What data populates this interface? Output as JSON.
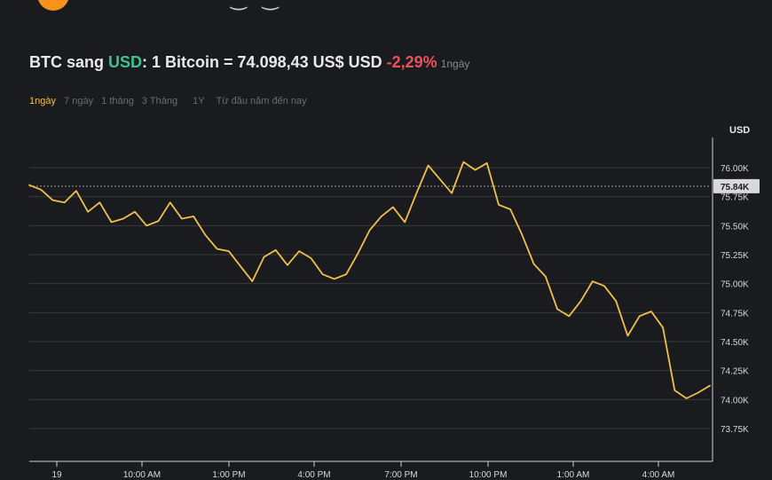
{
  "header": {
    "title_prefix": "BTC sang ",
    "title_currency": "USD",
    "title_rest": ": 1 Bitcoin = 74.098,43 US$ USD ",
    "change": "-2,29%",
    "period": "1ngày"
  },
  "tabs": [
    {
      "label": "1ngày",
      "active": true
    },
    {
      "label": "7 ngày",
      "active": false
    },
    {
      "label": "1 tháng",
      "active": false
    },
    {
      "label": "3 Tháng",
      "active": false
    },
    {
      "label": "1Y",
      "active": false
    },
    {
      "label": "Từ đầu năm đến nay",
      "active": false
    }
  ],
  "colors": {
    "line": "#f0c04a",
    "grid": "#3a3b3f",
    "background": "#1a1b1e",
    "positive": "#3ec28f",
    "negative": "#ef4f5a",
    "current_badge": "#d9d9d9"
  },
  "chart_data": {
    "type": "line",
    "ylabel": "USD",
    "current_value_label": "75.84K",
    "current_value": 75840,
    "ylim": [
      73600,
      76300
    ],
    "y_ticks": [
      {
        "value": 76000,
        "label": "76.00K"
      },
      {
        "value": 75750,
        "label": "75.75K"
      },
      {
        "value": 75500,
        "label": "75.50K"
      },
      {
        "value": 75250,
        "label": "75.25K"
      },
      {
        "value": 75000,
        "label": "75.00K"
      },
      {
        "value": 74750,
        "label": "74.75K"
      },
      {
        "value": 74500,
        "label": "74.50K"
      },
      {
        "value": 74250,
        "label": "74.25K"
      },
      {
        "value": 74000,
        "label": "74.00K"
      },
      {
        "value": 73750,
        "label": "73.75K"
      }
    ],
    "x_ticks": [
      "19",
      "10:00 AM",
      "1:00 PM",
      "4:00 PM",
      "7:00 PM",
      "10:00 PM",
      "1:00 AM",
      "4:00 AM"
    ],
    "series": [
      {
        "values": [
          75850,
          75810,
          75720,
          75700,
          75800,
          75620,
          75700,
          75530,
          75560,
          75620,
          75500,
          75540,
          75700,
          75560,
          75580,
          75420,
          75300,
          75280,
          75150,
          75020,
          75230,
          75290,
          75160,
          75280,
          75220,
          75080,
          75040,
          75080,
          75260,
          75460,
          75580,
          75660,
          75530,
          75780,
          76020,
          75900,
          75780,
          76050,
          75980,
          76040,
          75680,
          75640,
          75420,
          75170,
          75060,
          74780,
          74720,
          74850,
          75020,
          74980,
          74850,
          74550,
          74720,
          74760,
          74620,
          74080,
          74010,
          74060,
          74120
        ]
      }
    ]
  }
}
